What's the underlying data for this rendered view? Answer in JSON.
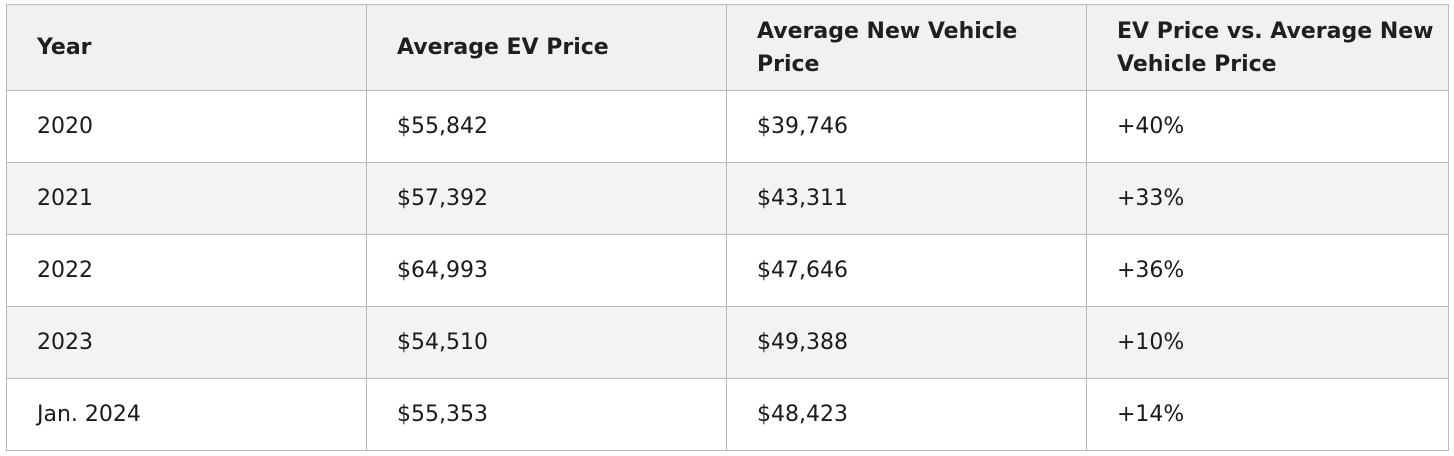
{
  "table": {
    "headers": [
      "Year",
      "Average EV Price",
      "Average New Vehicle Price",
      "EV Price vs. Average New Vehicle Price"
    ],
    "rows": [
      [
        "2020",
        "$55,842",
        "$39,746",
        "+40%"
      ],
      [
        "2021",
        "$57,392",
        "$43,311",
        "+33%"
      ],
      [
        "2022",
        "$64,993",
        "$47,646",
        "+36%"
      ],
      [
        "2023",
        "$54,510",
        "$49,388",
        "+10%"
      ],
      [
        "Jan. 2024",
        "$55,353",
        "$48,423",
        "+14%"
      ]
    ]
  },
  "colors": {
    "header_background": "#f1f1f2",
    "stripe_background": "#f3f3f3",
    "border": "#b9b9b9",
    "text": "#1a1a1a"
  }
}
